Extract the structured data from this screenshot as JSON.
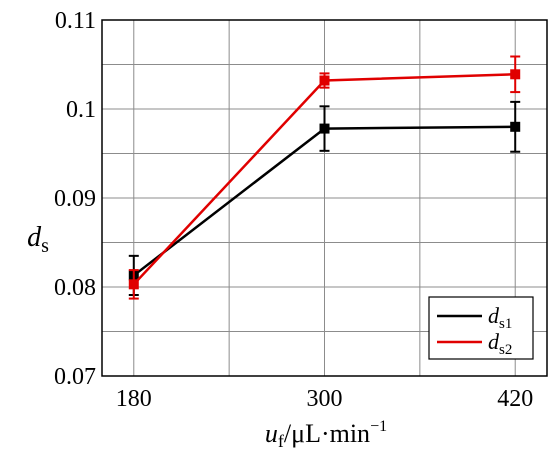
{
  "chart_data": {
    "type": "line",
    "x": [
      180,
      300,
      420
    ],
    "xticks": [
      "180",
      "300",
      "420"
    ],
    "yticks": [
      "0.07",
      "0.08",
      "0.09",
      "0.1",
      "0.11"
    ],
    "xlim": [
      160,
      440
    ],
    "ylim": [
      0.07,
      0.11
    ],
    "grid": true,
    "legend_position": "bottom-right",
    "xlabel": {
      "main": "u",
      "sub": "f",
      "rest": "/μL·min",
      "sup": "−1"
    },
    "ylabel": {
      "main": "d",
      "sub": "s"
    },
    "series": [
      {
        "name": "d",
        "name_sub": "s1",
        "color": "#000000",
        "values": [
          0.0813,
          0.0978,
          0.098
        ],
        "errors": [
          0.0022,
          0.0025,
          0.0028
        ]
      },
      {
        "name": "d",
        "name_sub": "s2",
        "color": "#e00000",
        "values": [
          0.0803,
          0.1032,
          0.1039
        ],
        "errors": [
          0.0016,
          0.0008,
          0.002
        ]
      }
    ]
  }
}
